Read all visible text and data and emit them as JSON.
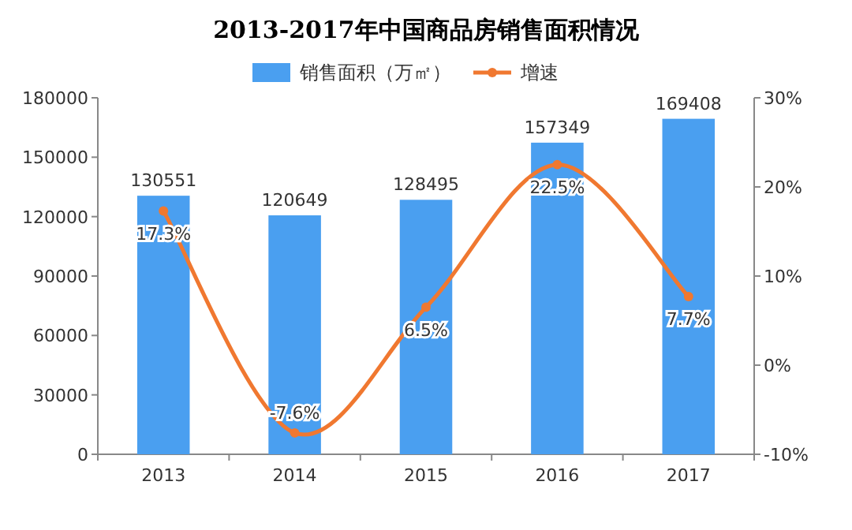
{
  "chart_data": {
    "type": "bar",
    "title": "2013-2017年中国商品房销售面积情况",
    "categories": [
      "2013",
      "2014",
      "2015",
      "2016",
      "2017"
    ],
    "series": [
      {
        "name": "销售面积（万㎡）",
        "color": "#4a9ff0",
        "values": [
          130551,
          120649,
          128495,
          157349,
          169408
        ],
        "value_labels": [
          "130551",
          "120649",
          "128495",
          "157349",
          "169408"
        ]
      },
      {
        "name": "增速",
        "type": "line",
        "axis": "y2",
        "color": "#f07830",
        "values": [
          17.3,
          -7.6,
          6.5,
          22.5,
          7.7
        ],
        "value_labels": [
          "17.3%",
          "-7.6%",
          "6.5%",
          "22.5%",
          "7.7%"
        ]
      }
    ],
    "ylim": [
      0,
      180000
    ],
    "yticks": [
      0,
      30000,
      60000,
      90000,
      120000,
      150000,
      180000
    ],
    "y2lim": [
      -10,
      30
    ],
    "y2ticks": [
      {
        "value": -10,
        "label": "-10%"
      },
      {
        "value": 0,
        "label": "0%"
      },
      {
        "value": 10,
        "label": "10%"
      },
      {
        "value": 20,
        "label": "20%"
      },
      {
        "value": 30,
        "label": "30%"
      }
    ],
    "legend": "top",
    "marker": "circle",
    "grid": false
  }
}
